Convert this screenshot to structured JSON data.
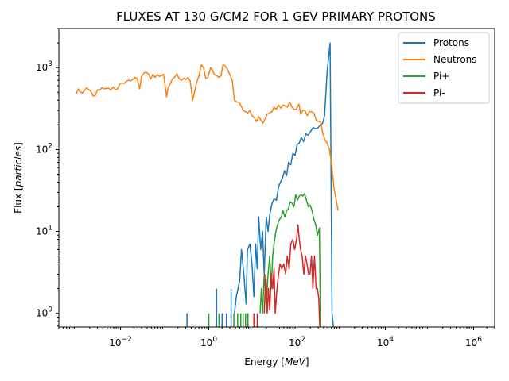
{
  "chart_data": {
    "type": "line",
    "title": "FLUXES AT 130 G/CM2 FOR 1 GEV PRIMARY PROTONS",
    "xlabel": "Energy [",
    "xlabel_unit": "MeV",
    "xlabel_end": "]",
    "ylabel": "Flux [",
    "ylabel_unit": "particles",
    "ylabel_end": "]",
    "xscale": "log",
    "yscale": "log",
    "xlim": [
      0.0004,
      3000000
    ],
    "ylim": [
      0.68,
      3000
    ],
    "x_ticks": [
      {
        "value": 0.01,
        "base": "10",
        "exp": "−2"
      },
      {
        "value": 1,
        "base": "10",
        "exp": "0"
      },
      {
        "value": 100,
        "base": "10",
        "exp": "2"
      },
      {
        "value": 10000,
        "base": "10",
        "exp": "4"
      },
      {
        "value": 1000000,
        "base": "10",
        "exp": "6"
      }
    ],
    "y_ticks": [
      {
        "value": 1,
        "base": "10",
        "exp": "0"
      },
      {
        "value": 10,
        "base": "10",
        "exp": "1"
      },
      {
        "value": 100,
        "base": "10",
        "exp": "2"
      },
      {
        "value": 1000,
        "base": "10",
        "exp": "3"
      }
    ],
    "grid": false,
    "legend_position": "top-right",
    "series": [
      {
        "name": "Protons",
        "color": "#1f77b4",
        "mode": "bars_and_line",
        "spikes": [
          [
            0.32,
            1
          ],
          [
            1.5,
            2
          ],
          [
            2.0,
            1
          ],
          [
            2.5,
            1
          ],
          [
            3.2,
            2
          ]
        ],
        "points": [
          [
            3.8,
            1
          ],
          [
            4.2,
            1.6
          ],
          [
            5.0,
            2.5
          ],
          [
            5.5,
            6
          ],
          [
            6.2,
            3
          ],
          [
            7.0,
            1.3
          ],
          [
            7.5,
            6
          ],
          [
            8.5,
            7
          ],
          [
            9.5,
            4
          ],
          [
            10.5,
            1.6
          ],
          [
            11.5,
            7
          ],
          [
            12.5,
            3.5
          ],
          [
            13.5,
            15
          ],
          [
            15.0,
            6
          ],
          [
            16.5,
            10
          ],
          [
            18.0,
            3
          ],
          [
            20,
            15
          ],
          [
            22,
            10
          ],
          [
            24,
            16
          ],
          [
            27,
            22
          ],
          [
            30,
            25
          ],
          [
            34,
            24
          ],
          [
            38,
            35
          ],
          [
            42,
            40
          ],
          [
            47,
            45
          ],
          [
            52,
            55
          ],
          [
            58,
            48
          ],
          [
            64,
            70
          ],
          [
            72,
            65
          ],
          [
            80,
            90
          ],
          [
            90,
            85
          ],
          [
            100,
            115
          ],
          [
            112,
            120
          ],
          [
            125,
            140
          ],
          [
            140,
            125
          ],
          [
            158,
            155
          ],
          [
            178,
            150
          ],
          [
            200,
            165
          ],
          [
            230,
            185
          ],
          [
            260,
            180
          ],
          [
            300,
            185
          ],
          [
            340,
            200
          ],
          [
            380,
            210
          ],
          [
            420,
            260
          ],
          [
            480,
            900
          ],
          [
            560,
            2000
          ],
          [
            620,
            1
          ],
          [
            680,
            0.68
          ]
        ]
      },
      {
        "name": "Neutrons",
        "color": "#ff7f0e",
        "mode": "line",
        "points": [
          [
            0.001,
            480
          ],
          [
            0.0011,
            550
          ],
          [
            0.0012,
            510
          ],
          [
            0.00135,
            490
          ],
          [
            0.0015,
            520
          ],
          [
            0.0017,
            570
          ],
          [
            0.0019,
            540
          ],
          [
            0.0021,
            520
          ],
          [
            0.0024,
            450
          ],
          [
            0.0027,
            460
          ],
          [
            0.003,
            540
          ],
          [
            0.0034,
            530
          ],
          [
            0.0038,
            570
          ],
          [
            0.0043,
            550
          ],
          [
            0.0048,
            560
          ],
          [
            0.0054,
            560
          ],
          [
            0.006,
            530
          ],
          [
            0.0068,
            580
          ],
          [
            0.0076,
            540
          ],
          [
            0.0085,
            550
          ],
          [
            0.0095,
            630
          ],
          [
            0.011,
            650
          ],
          [
            0.012,
            640
          ],
          [
            0.0135,
            680
          ],
          [
            0.015,
            700
          ],
          [
            0.017,
            690
          ],
          [
            0.019,
            720
          ],
          [
            0.021,
            760
          ],
          [
            0.024,
            730
          ],
          [
            0.027,
            550
          ],
          [
            0.03,
            780
          ],
          [
            0.034,
            860
          ],
          [
            0.038,
            880
          ],
          [
            0.043,
            840
          ],
          [
            0.048,
            730
          ],
          [
            0.054,
            830
          ],
          [
            0.06,
            760
          ],
          [
            0.068,
            820
          ],
          [
            0.076,
            780
          ],
          [
            0.085,
            800
          ],
          [
            0.095,
            830
          ],
          [
            0.11,
            440
          ],
          [
            0.12,
            570
          ],
          [
            0.135,
            640
          ],
          [
            0.15,
            730
          ],
          [
            0.17,
            770
          ],
          [
            0.19,
            840
          ],
          [
            0.21,
            740
          ],
          [
            0.24,
            700
          ],
          [
            0.27,
            740
          ],
          [
            0.3,
            720
          ],
          [
            0.34,
            760
          ],
          [
            0.38,
            680
          ],
          [
            0.43,
            400
          ],
          [
            0.48,
            520
          ],
          [
            0.54,
            680
          ],
          [
            0.6,
            800
          ],
          [
            0.68,
            1080
          ],
          [
            0.76,
            1000
          ],
          [
            0.85,
            740
          ],
          [
            0.95,
            760
          ],
          [
            1.1,
            1000
          ],
          [
            1.2,
            940
          ],
          [
            1.35,
            820
          ],
          [
            1.5,
            800
          ],
          [
            1.7,
            760
          ],
          [
            1.9,
            800
          ],
          [
            2.1,
            1100
          ],
          [
            2.4,
            1030
          ],
          [
            2.7,
            940
          ],
          [
            3.0,
            820
          ],
          [
            3.4,
            700
          ],
          [
            3.8,
            400
          ],
          [
            4.3,
            380
          ],
          [
            4.8,
            380
          ],
          [
            5.4,
            340
          ],
          [
            6.0,
            300
          ],
          [
            6.8,
            290
          ],
          [
            7.6,
            280
          ],
          [
            8.5,
            300
          ],
          [
            9.5,
            260
          ],
          [
            11,
            240
          ],
          [
            12,
            220
          ],
          [
            13.5,
            250
          ],
          [
            15,
            230
          ],
          [
            17,
            210
          ],
          [
            19,
            240
          ],
          [
            21,
            270
          ],
          [
            24,
            280
          ],
          [
            27,
            290
          ],
          [
            30,
            330
          ],
          [
            34,
            310
          ],
          [
            38,
            350
          ],
          [
            43,
            320
          ],
          [
            48,
            350
          ],
          [
            54,
            340
          ],
          [
            60,
            330
          ],
          [
            68,
            380
          ],
          [
            76,
            330
          ],
          [
            85,
            310
          ],
          [
            95,
            310
          ],
          [
            110,
            360
          ],
          [
            120,
            270
          ],
          [
            135,
            300
          ],
          [
            150,
            300
          ],
          [
            170,
            260
          ],
          [
            190,
            290
          ],
          [
            210,
            290
          ],
          [
            240,
            280
          ],
          [
            270,
            230
          ],
          [
            300,
            220
          ],
          [
            340,
            220
          ],
          [
            380,
            160
          ],
          [
            430,
            130
          ],
          [
            480,
            120
          ],
          [
            540,
            100
          ],
          [
            600,
            70
          ],
          [
            680,
            35
          ],
          [
            760,
            25
          ],
          [
            850,
            18
          ]
        ]
      },
      {
        "name": "Pi+",
        "color": "#2ca02c",
        "mode": "bars_and_line",
        "spikes": [
          [
            1.0,
            1
          ],
          [
            1.7,
            1
          ],
          [
            3.7,
            1
          ],
          [
            4.5,
            1
          ],
          [
            5.3,
            1
          ],
          [
            6.0,
            1
          ],
          [
            6.8,
            1
          ],
          [
            7.7,
            1
          ]
        ],
        "points": [
          [
            14.5,
            1
          ],
          [
            15.5,
            2
          ],
          [
            16.5,
            1
          ],
          [
            18,
            3
          ],
          [
            20,
            1.3
          ],
          [
            22,
            3
          ],
          [
            24,
            5
          ],
          [
            26,
            2
          ],
          [
            28,
            5
          ],
          [
            30,
            7
          ],
          [
            33,
            10
          ],
          [
            36,
            12
          ],
          [
            40,
            14
          ],
          [
            44,
            15
          ],
          [
            48,
            18
          ],
          [
            53,
            15
          ],
          [
            58,
            18
          ],
          [
            64,
            19
          ],
          [
            70,
            23
          ],
          [
            77,
            22
          ],
          [
            85,
            20
          ],
          [
            93,
            28
          ],
          [
            102,
            24
          ],
          [
            112,
            27
          ],
          [
            123,
            28
          ],
          [
            135,
            27
          ],
          [
            148,
            29
          ],
          [
            163,
            24
          ],
          [
            180,
            20
          ],
          [
            198,
            21
          ],
          [
            218,
            18
          ],
          [
            240,
            14
          ],
          [
            265,
            12
          ],
          [
            290,
            9
          ],
          [
            320,
            11
          ],
          [
            340,
            0.68
          ]
        ]
      },
      {
        "name": "Pi-",
        "color": "#d62728",
        "mode": "bars_and_line",
        "spikes": [
          [
            10.5,
            1
          ],
          [
            12.5,
            1
          ]
        ],
        "points": [
          [
            18,
            1
          ],
          [
            19.5,
            3
          ],
          [
            21,
            1
          ],
          [
            22.5,
            2
          ],
          [
            24,
            1.1
          ],
          [
            26,
            3
          ],
          [
            28,
            2
          ],
          [
            30,
            3.5
          ],
          [
            32,
            1
          ],
          [
            35,
            2
          ],
          [
            38,
            3
          ],
          [
            41,
            4
          ],
          [
            45,
            3.5
          ],
          [
            50,
            4
          ],
          [
            55,
            3
          ],
          [
            60,
            5
          ],
          [
            66,
            3.5
          ],
          [
            72,
            7
          ],
          [
            80,
            8
          ],
          [
            88,
            6
          ],
          [
            97,
            8
          ],
          [
            105,
            12
          ],
          [
            112,
            8
          ],
          [
            120,
            6
          ],
          [
            130,
            5
          ],
          [
            142,
            3
          ],
          [
            155,
            5
          ],
          [
            168,
            4
          ],
          [
            182,
            3
          ],
          [
            196,
            3
          ],
          [
            212,
            5
          ],
          [
            228,
            2
          ],
          [
            248,
            5
          ],
          [
            270,
            2
          ],
          [
            290,
            2
          ],
          [
            310,
            1.5
          ],
          [
            330,
            0.68
          ]
        ]
      }
    ]
  }
}
